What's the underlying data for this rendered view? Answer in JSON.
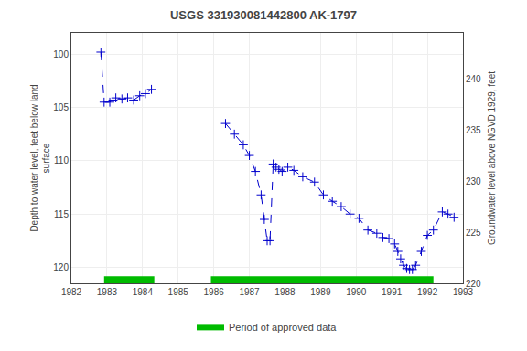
{
  "chart_data": {
    "type": "line",
    "title": "USGS 331930081442800 AK-1797",
    "y_label": "Depth to water level, feet below land\nsurface",
    "y2_label": "Groundwater level above NGVD 1929, feet",
    "xlim": [
      1982,
      1993
    ],
    "xticks": [
      1982,
      1983,
      1984,
      1985,
      1986,
      1987,
      1988,
      1989,
      1990,
      1991,
      1992,
      1993
    ],
    "ylim": [
      121.5,
      98.0
    ],
    "yticks": [
      100,
      105,
      110,
      115,
      120
    ],
    "y2lim": [
      220.0,
      244.5
    ],
    "y2ticks": [
      240,
      235,
      230,
      225,
      220
    ],
    "grid": true,
    "legend": "bottom",
    "series": [
      {
        "type": "line",
        "color": "#0000CC",
        "marker": "plus",
        "line_style": "dashed",
        "x": [
          1982.83,
          1982.92,
          1983.08,
          1983.17,
          1983.25,
          1983.42,
          1983.58,
          1983.75,
          1983.92,
          1984.08,
          1984.25
        ],
        "values": [
          99.8,
          104.5,
          104.5,
          104.3,
          104.1,
          104.2,
          104.1,
          104.3,
          103.9,
          103.7,
          103.3
        ]
      },
      {
        "type": "line",
        "color": "#0000CC",
        "marker": "plus",
        "line_style": "dashed",
        "x": [
          1986.33,
          1986.58,
          1986.83,
          1987.0,
          1987.17,
          1987.33,
          1987.42,
          1987.5,
          1987.58,
          1987.67,
          1987.75,
          1987.83,
          1987.92,
          1988.08,
          1988.25,
          1988.5,
          1988.83,
          1989.08,
          1989.33,
          1989.58,
          1989.83,
          1990.08,
          1990.33,
          1990.58,
          1990.75,
          1990.92,
          1991.08,
          1991.17,
          1991.25,
          1991.33,
          1991.42,
          1991.5,
          1991.58,
          1991.67,
          1991.83,
          1992.0,
          1992.17,
          1992.42,
          1992.58,
          1992.75
        ],
        "values": [
          106.5,
          107.5,
          108.5,
          109.5,
          111.0,
          113.2,
          115.5,
          117.5,
          117.5,
          110.3,
          110.6,
          110.8,
          111.0,
          110.6,
          110.9,
          111.5,
          112.0,
          113.2,
          113.8,
          114.3,
          115.0,
          115.4,
          116.5,
          116.8,
          117.2,
          117.3,
          117.8,
          118.5,
          119.2,
          119.8,
          120.1,
          120.2,
          120.2,
          119.8,
          118.5,
          117.0,
          116.5,
          114.8,
          115.0,
          115.3
        ]
      },
      {
        "type": "span",
        "name": "Period of approved data",
        "color": "#00BB00",
        "ranges": [
          [
            1982.92,
            1984.33
          ],
          [
            1985.92,
            1992.17
          ]
        ]
      }
    ]
  }
}
